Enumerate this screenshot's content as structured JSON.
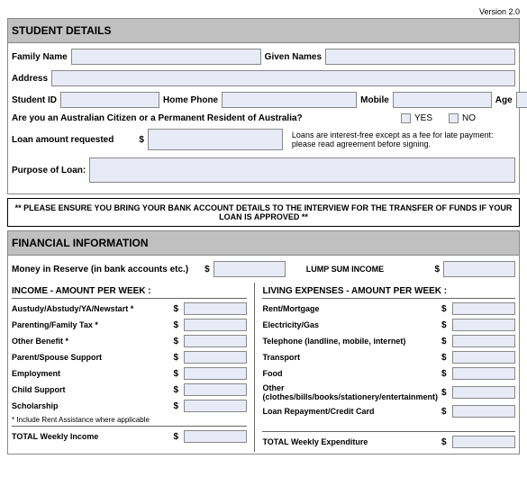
{
  "version": "Version 2.0",
  "student": {
    "header": "STUDENT DETAILS",
    "family_name_label": "Family Name",
    "given_names_label": "Given Names",
    "address_label": "Address",
    "student_id_label": "Student ID",
    "home_phone_label": "Home Phone",
    "mobile_label": "Mobile",
    "age_label": "Age",
    "citizen_question": "Are you an Australian Citizen or a Permanent Resident of Australia?",
    "yes_label": "YES",
    "no_label": "NO",
    "loan_amount_label": "Loan amount requested",
    "loan_note": "Loans are interest-free except as a fee for late payment: please read agreement before signing.",
    "purpose_label": "Purpose of  Loan:",
    "notice": "** PLEASE ENSURE YOU BRING YOUR BANK ACCOUNT DETAILS TO THE INTERVIEW FOR THE TRANSFER OF FUNDS IF YOUR LOAN IS APPROVED **"
  },
  "financial": {
    "header": "FINANCIAL INFORMATION",
    "reserve_label": "Money in Reserve (in bank accounts etc.)",
    "lump_sum_label": "LUMP SUM INCOME",
    "income_header": "INCOME - AMOUNT PER WEEK :",
    "expenses_header": "LIVING EXPENSES - AMOUNT PER WEEK :",
    "income_items": [
      "Austudy/Abstudy/YA/Newstart *",
      "Parenting/Family Tax *",
      "Other Benefit *",
      "Parent/Spouse Support",
      "Employment",
      "Child Support",
      "Scholarship"
    ],
    "expense_items": [
      "Rent/Mortgage",
      "Electricity/Gas",
      "Telephone (landline, mobile, internet)",
      "Transport",
      "Food",
      "Other (clothes/bills/books/stationery/entertainment)",
      "Loan Repayment/Credit Card"
    ],
    "footnote": "* Include Rent Assistance where applicable",
    "total_income_label": "TOTAL Weekly Income",
    "total_expense_label": "TOTAL Weekly Expenditure",
    "dollar": "$"
  }
}
